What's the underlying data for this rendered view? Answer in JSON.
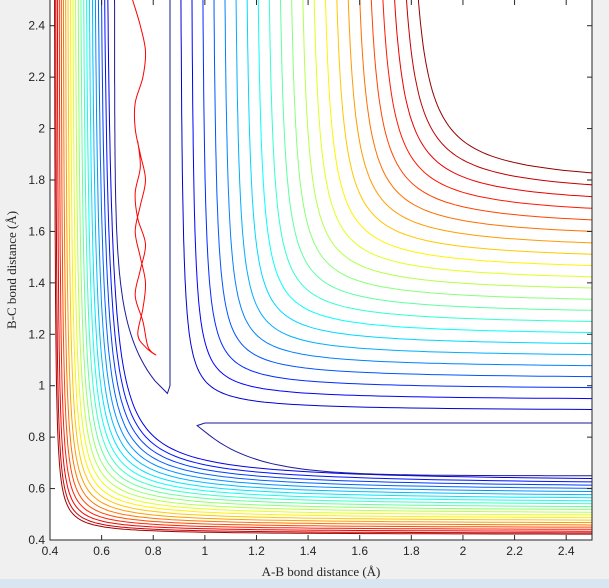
{
  "chart_data": {
    "type": "contour",
    "title": "",
    "xlabel": "A-B bond distance (Å)",
    "ylabel": "B-C bond distance (Å)",
    "xlim": [
      0.4,
      2.5
    ],
    "ylim": [
      0.4,
      2.5
    ],
    "xticks": [
      "0.4",
      "0.6",
      "0.8",
      "1",
      "1.2",
      "1.4",
      "1.6",
      "1.8",
      "2",
      "2.2",
      "2.4"
    ],
    "yticks": [
      "0.4",
      "0.6",
      "0.8",
      "1",
      "1.2",
      "1.4",
      "1.6",
      "1.8",
      "2",
      "2.2",
      "2.4"
    ],
    "grid": false,
    "colormap": "jet",
    "reactant_valley_tip": [
      0.86,
      0.97
    ],
    "product_valley_tip": [
      0.97,
      0.85
    ],
    "trajectory": {
      "color": "#ff0000",
      "x": [
        0.72,
        0.75,
        0.77,
        0.76,
        0.73,
        0.73,
        0.75,
        0.77,
        0.75,
        0.73,
        0.75,
        0.77,
        0.76,
        0.74,
        0.77,
        0.81,
        0.78,
        0.76,
        0.73,
        0.75,
        0.77,
        0.74,
        0.73,
        0.75,
        0.74
      ],
      "y": [
        2.5,
        2.4,
        2.3,
        2.2,
        2.1,
        2.0,
        1.9,
        1.8,
        1.7,
        1.6,
        1.5,
        1.4,
        1.3,
        1.2,
        1.15,
        1.12,
        1.15,
        1.25,
        1.35,
        1.45,
        1.55,
        1.65,
        1.75,
        1.85,
        1.95
      ]
    }
  }
}
